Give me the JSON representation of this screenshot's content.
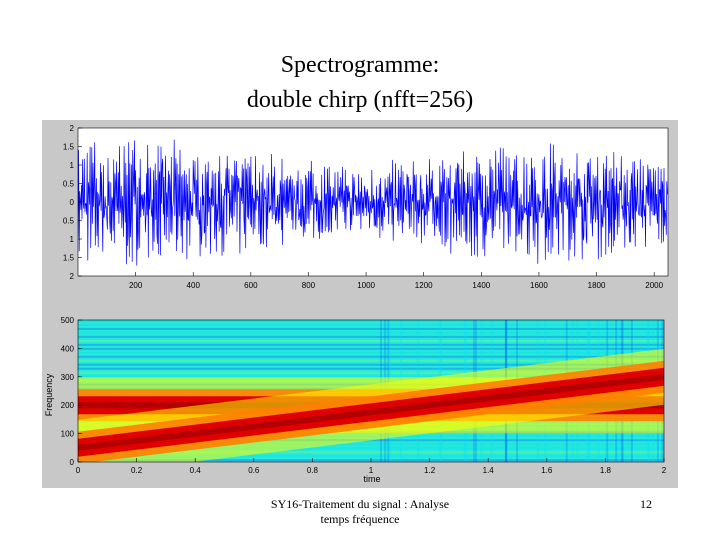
{
  "slide": {
    "title_line1": "Spectrogramme:",
    "title_line2": "double chirp (nfft=256)",
    "footer_line1": "SY16-Traitement du signal : Analyse",
    "footer_line2": "temps fréquence",
    "page_number": "12"
  },
  "chart_data": [
    {
      "type": "line",
      "description_series": "signal",
      "x_ticks": [
        "200",
        "400",
        "600",
        "800",
        "1000",
        "1200",
        "1400",
        "1600",
        "1800",
        "2000"
      ],
      "y_ticks": [
        "2",
        "1.5",
        "1",
        "0.5",
        "0",
        "0.5",
        "1",
        "1.5",
        "2"
      ],
      "xlim": [
        0,
        2048
      ],
      "ylim": [
        -2,
        2
      ],
      "color": "#0000ff"
    },
    {
      "type": "heatmap",
      "xlabel": "time",
      "ylabel": "Frequency",
      "x_ticks": [
        "0",
        "0.2",
        "0.4",
        "0.6",
        "0.8",
        "1",
        "1.2",
        "1.4",
        "1.6",
        "1.8",
        "2"
      ],
      "y_ticks": [
        "500",
        "400",
        "300",
        "200",
        "100",
        "0"
      ],
      "xlim": [
        0,
        2
      ],
      "ylim": [
        0,
        500
      ],
      "chirps": [
        {
          "t": [
            0,
            2
          ],
          "f": [
            200,
            200
          ]
        },
        {
          "t": [
            0,
            2
          ],
          "f": [
            50,
            300
          ]
        }
      ],
      "colormap": [
        "#00008f",
        "#0060ff",
        "#00e0ff",
        "#80ff80",
        "#ffff00",
        "#ff8000",
        "#e00000",
        "#a00000"
      ]
    }
  ]
}
